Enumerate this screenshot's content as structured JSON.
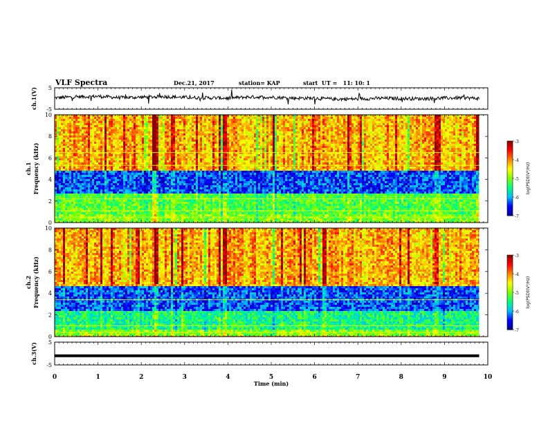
{
  "header": {
    "title": "VLF Spectra",
    "date": "Dec.21, 2017",
    "station": "station= KAP",
    "start": "start  UT =   11: 10: 1"
  },
  "colors": {
    "colormap": [
      "#00008b",
      "#0000ff",
      "#00bfff",
      "#00ff7f",
      "#7fff00",
      "#ffff00",
      "#ff7f00",
      "#ff0000",
      "#8b0000"
    ],
    "trace": "#000000"
  },
  "chart_data": [
    {
      "type": "line",
      "panel": "ch1-waveform",
      "ylabel": "ch.1(V)",
      "ylim": [
        -5,
        5
      ],
      "yticks": [
        "5",
        "-5"
      ],
      "xlim": [
        0,
        10
      ],
      "x_min": [
        0,
        0.5,
        1,
        1.5,
        2,
        2.5,
        3,
        3.5,
        4,
        4.5,
        5,
        5.5,
        6,
        6.5,
        7,
        7.5,
        8,
        8.5,
        9,
        9.5,
        9.8
      ],
      "y_volts": [
        0.3,
        0.8,
        1.0,
        0.4,
        0.6,
        0.9,
        0.5,
        0.3,
        0.2,
        0.7,
        0.6,
        0.2,
        0.1,
        -0.3,
        -0.2,
        0.1,
        0.0,
        -0.1,
        0.2,
        0.3,
        0.0
      ]
    },
    {
      "type": "heatmap",
      "panel": "ch1-spectrogram",
      "ylabel_top": "ch.1",
      "ylabel": "Frequency (kHz)",
      "ylim": [
        0,
        10
      ],
      "yticks": [
        "0",
        "2",
        "4",
        "6",
        "8",
        "10"
      ],
      "xlim": [
        0,
        10
      ],
      "data_end_min": 9.8,
      "colorbar_label": "log(PSD)(V²/Hz)",
      "colorbar_range": [
        -7,
        -3
      ],
      "colorbar_ticks": [
        "-3",
        "-4",
        "-5",
        "-6",
        "-7"
      ],
      "frequency_profile_log_psd": [
        {
          "f_khz": [
            0,
            0.7
          ],
          "log_psd": -5.0
        },
        {
          "f_khz": [
            0.7,
            2.6
          ],
          "log_psd": -5.2
        },
        {
          "f_khz": [
            2.6,
            4.8
          ],
          "log_psd": -6.3
        },
        {
          "f_khz": [
            4.8,
            10
          ],
          "log_psd": -4.2
        }
      ],
      "horizontal_lines_khz": [
        0.5,
        1.1,
        2.2,
        5.3,
        6.5
      ],
      "strong_bursts_min": [
        2.3,
        2.7,
        3.9,
        6.8,
        8.8
      ]
    },
    {
      "type": "heatmap",
      "panel": "ch2-spectrogram",
      "ylabel_top": "ch.2",
      "ylabel": "Frequency (kHz)",
      "ylim": [
        0,
        10
      ],
      "yticks": [
        "0",
        "2",
        "4",
        "6",
        "8",
        "10"
      ],
      "xlim": [
        0,
        10
      ],
      "data_end_min": 9.8,
      "colorbar_label": "log(PSD)(V²/Hz)",
      "colorbar_range": [
        -7,
        -3
      ],
      "colorbar_ticks": [
        "-3",
        "-4",
        "-5",
        "-6",
        "-7"
      ],
      "frequency_profile_log_psd": [
        {
          "f_khz": [
            0,
            0.7
          ],
          "log_psd": -5.0
        },
        {
          "f_khz": [
            0.7,
            2.4
          ],
          "log_psd": -5.5
        },
        {
          "f_khz": [
            2.4,
            4.6
          ],
          "log_psd": -6.3
        },
        {
          "f_khz": [
            4.6,
            10
          ],
          "log_psd": -4.2
        }
      ],
      "horizontal_lines_khz": [
        0.4,
        1.0,
        3.4
      ],
      "strong_bursts_min": [
        2.3,
        3.9,
        6.2,
        8.8
      ]
    },
    {
      "type": "line",
      "panel": "ch3-waveform",
      "ylabel": "ch.3(V)",
      "ylim": [
        -5,
        5
      ],
      "yticks": [
        "5",
        "-5"
      ],
      "xlim": [
        0,
        10
      ],
      "xlabel": "Time (min)",
      "xticks": [
        "0",
        "1",
        "2",
        "3",
        "4",
        "5",
        "6",
        "7",
        "8",
        "9",
        "10"
      ],
      "x_min": [
        0,
        9.8
      ],
      "y_volts": [
        -1.0,
        -1.0
      ]
    }
  ]
}
